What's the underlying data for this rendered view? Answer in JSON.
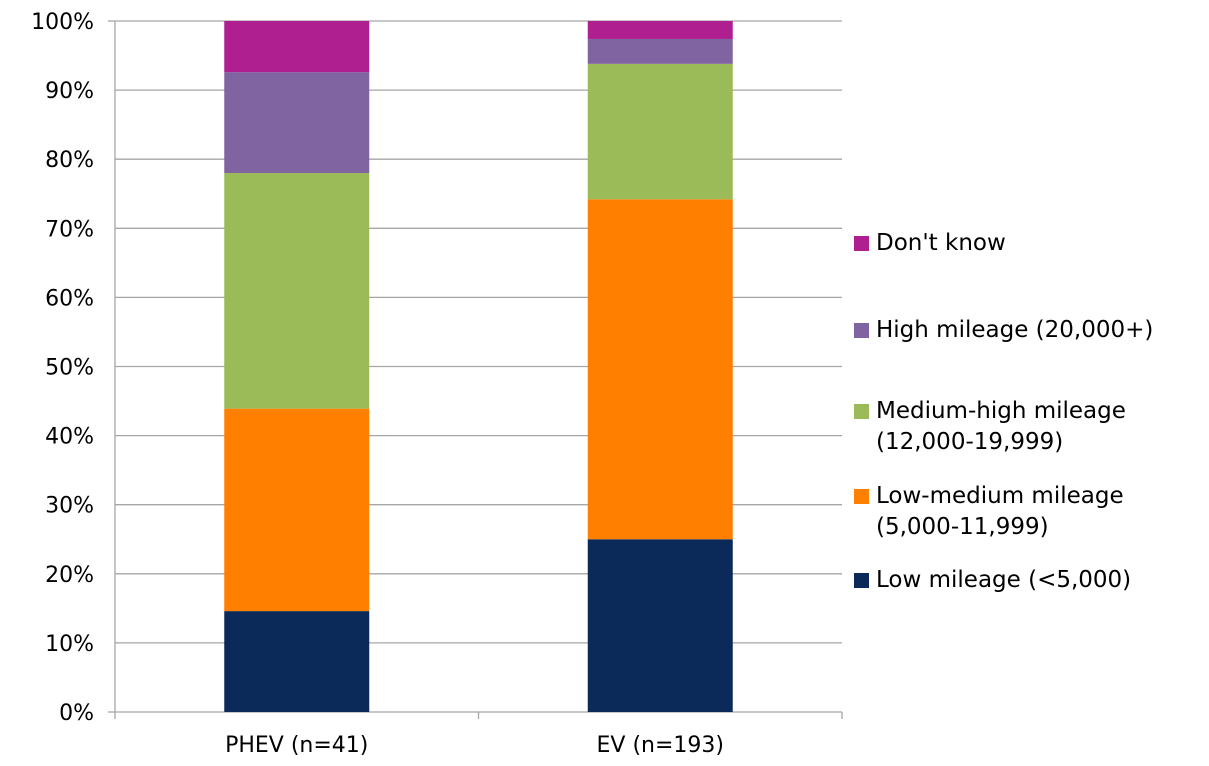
{
  "chart_data": {
    "type": "bar",
    "stacked": true,
    "categories": [
      "PHEV (n=41)",
      "EV (n=193)"
    ],
    "yticks": [
      "0%",
      "10%",
      "20%",
      "30%",
      "40%",
      "50%",
      "60%",
      "70%",
      "80%",
      "90%",
      "100%"
    ],
    "ylim": [
      0,
      100
    ],
    "grid": true,
    "legend_position": "right",
    "series": [
      {
        "name": "Low mileage (<5,000)",
        "color": "#0B2A5A",
        "values": [
          14.6,
          25.0
        ]
      },
      {
        "name": "Low-medium mileage\n(5,000-11,999)",
        "color": "#FF7F00",
        "values": [
          29.3,
          49.2
        ]
      },
      {
        "name": "Medium-high mileage\n(12,000-19,999)",
        "color": "#9BBB59",
        "values": [
          34.1,
          19.6
        ]
      },
      {
        "name": "High mileage (20,000+)",
        "color": "#8064A2",
        "values": [
          14.6,
          3.6
        ]
      },
      {
        "name": "Don't know",
        "color": "#B01F90",
        "values": [
          7.4,
          2.6
        ]
      }
    ]
  }
}
